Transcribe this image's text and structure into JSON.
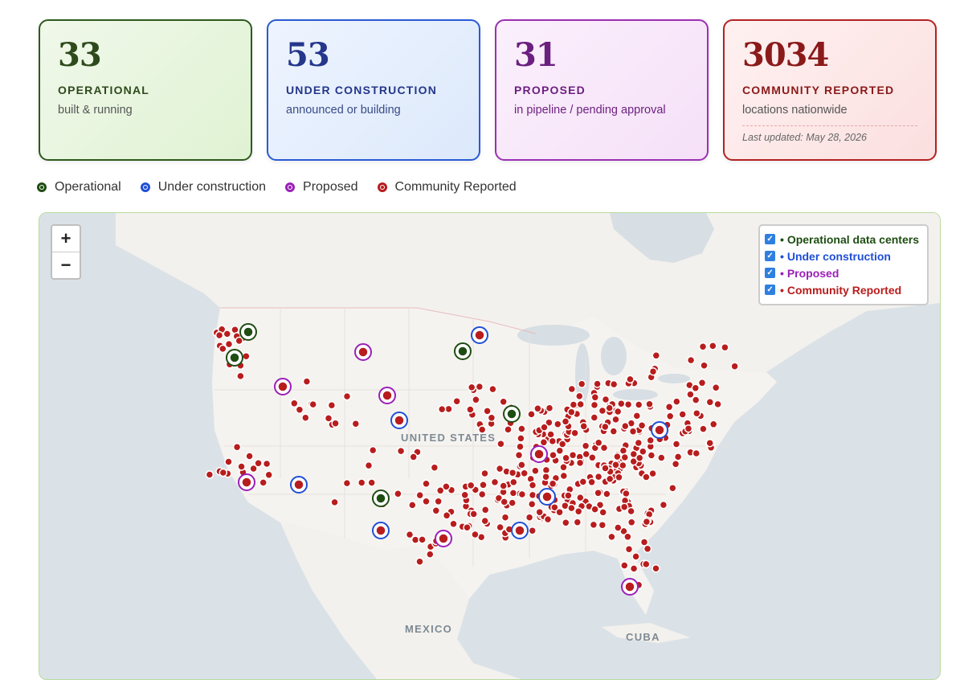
{
  "cards": [
    {
      "count": "33",
      "label": "OPERATIONAL",
      "sub": "built & running"
    },
    {
      "count": "53",
      "label": "UNDER CONSTRUCTION",
      "sub": "announced or building"
    },
    {
      "count": "31",
      "label": "PROPOSED",
      "sub": "in pipeline / pending approval"
    },
    {
      "count": "3034",
      "label": "COMMUNITY REPORTED",
      "sub": "locations nationwide",
      "updated": "Last updated: May 28, 2026"
    }
  ],
  "legend": [
    {
      "label": "Operational",
      "color": "#1e4d12"
    },
    {
      "label": "Under construction",
      "color": "#1f4fd6"
    },
    {
      "label": "Proposed",
      "color": "#9b1fb8"
    },
    {
      "label": "Community Reported",
      "color": "#b81d1d"
    }
  ],
  "map": {
    "zoom_in": "+",
    "zoom_out": "−",
    "layers": [
      {
        "label": "Operational data centers",
        "color": "#1e4d12",
        "checked": true
      },
      {
        "label": "Under construction",
        "color": "#1f4fd6",
        "checked": true
      },
      {
        "label": "Proposed",
        "color": "#9b1fb8",
        "checked": true
      },
      {
        "label": "Community Reported",
        "color": "#b81d1d",
        "checked": true
      }
    ],
    "place_labels": {
      "us": "UNITED STATES",
      "mexico": "MEXICO",
      "cuba": "CUBA"
    }
  }
}
